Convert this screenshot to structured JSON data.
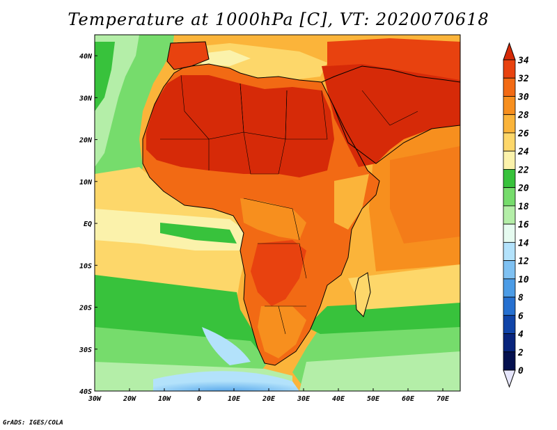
{
  "title": "Temperature at 1000hPa [C], VT: 2020070618",
  "credit": "GrADS: IGES/COLA",
  "map": {
    "lon_ticks": [
      "30W",
      "20W",
      "10W",
      "0",
      "10E",
      "20E",
      "30E",
      "40E",
      "50E",
      "60E",
      "70E"
    ],
    "lat_ticks": [
      "40N",
      "30N",
      "20N",
      "10N",
      "EQ",
      "10S",
      "20S",
      "30S",
      "40S"
    ],
    "lon_range": [
      -30,
      75
    ],
    "lat_range": [
      -40,
      45
    ]
  },
  "colorbar": {
    "labels": [
      "34",
      "32",
      "30",
      "28",
      "26",
      "24",
      "22",
      "20",
      "18",
      "16",
      "14",
      "12",
      "10",
      "8",
      "6",
      "4",
      "2",
      "0"
    ],
    "colors": [
      "#d62a08",
      "#e8420f",
      "#f26a14",
      "#f78f1e",
      "#fbb43a",
      "#fdd76a",
      "#fbf2ab",
      "#38c23c",
      "#76dc6c",
      "#b4eea8",
      "#e6fbf0",
      "#b3e2fb",
      "#7fc1f2",
      "#4c9ce6",
      "#2670d0",
      "#1044a8",
      "#08247c",
      "#04104e",
      "#e6e6fb"
    ]
  }
}
